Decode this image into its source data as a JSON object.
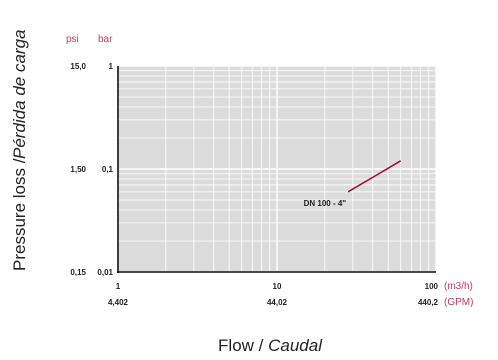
{
  "chart_data": {
    "type": "line",
    "xscale": "log",
    "yscale": "log",
    "xlim": [
      1,
      100
    ],
    "ylim": [
      0.01,
      1
    ],
    "grid": true,
    "ylabel": {
      "main": "Pressure loss / ",
      "italic": "Pérdida de carga"
    },
    "xlabel": {
      "main": "Flow / ",
      "italic": "Caudal"
    },
    "y_units": {
      "psi": "psi",
      "bar": "bar"
    },
    "y_ticks": [
      {
        "bar": 1,
        "bar_label": "1",
        "psi_label": "15,0"
      },
      {
        "bar": 0.1,
        "bar_label": "0,1",
        "psi_label": "1,50"
      },
      {
        "bar": 0.01,
        "bar_label": "0,01",
        "psi_label": "0,15"
      }
    ],
    "x_ticks": [
      {
        "m3h": 1,
        "m3h_label": "1",
        "gpm_label": "4,402"
      },
      {
        "m3h": 10,
        "m3h_label": "10",
        "gpm_label": "44,02"
      },
      {
        "m3h": 100,
        "m3h_label": "100",
        "gpm_label": "440,2"
      }
    ],
    "x_units": {
      "m3h": "(m3/h)",
      "gpm": "(GPM)"
    },
    "series": [
      {
        "name": "DN 100 - 4\"",
        "x": [
          28,
          60
        ],
        "y": [
          0.06,
          0.12
        ],
        "color": "#a8103c"
      }
    ],
    "colors": {
      "plot_bg": "#dcdcdc",
      "grid": "#ffffff",
      "accent": "#c04060"
    }
  },
  "clipped_left_text": {
    "line1": "h)",
    "line2": "M)"
  }
}
